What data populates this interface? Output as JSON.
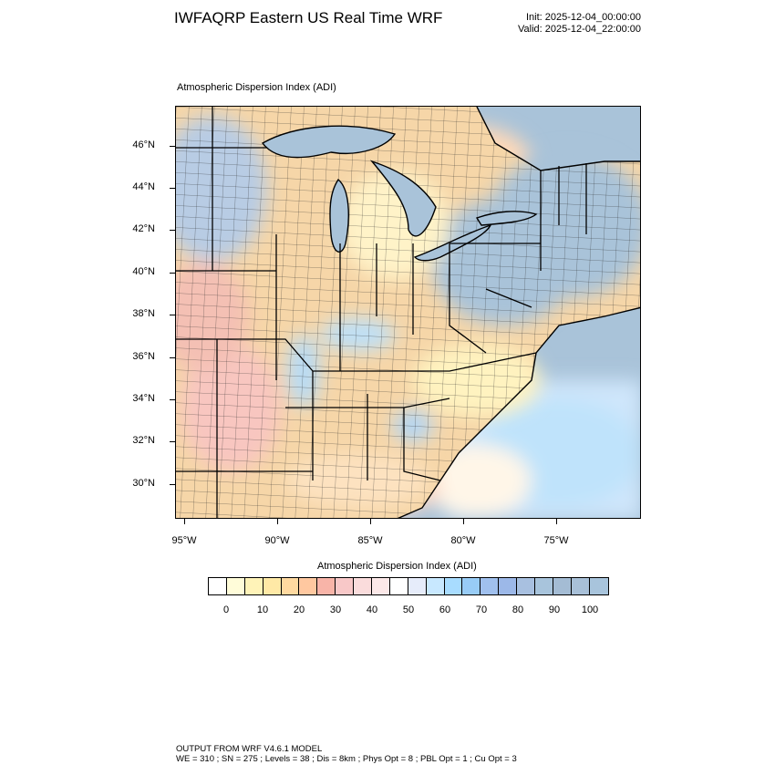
{
  "title": "IWFAQRP Eastern US Real Time WRF",
  "init": "Init: 2025-12-04_00:00:00",
  "valid": "Valid: 2025-12-04_22:00:00",
  "map_title": "Atmospheric Dispersion Index   (ADI)",
  "lat_labels": [
    "46°N",
    "44°N",
    "42°N",
    "40°N",
    "38°N",
    "36°N",
    "34°N",
    "32°N",
    "30°N"
  ],
  "lon_labels": [
    "95°W",
    "90°W",
    "85°W",
    "80°W",
    "75°W"
  ],
  "colorbar": {
    "title": "Atmospheric Dispersion Index  (ADI)",
    "labels": [
      "0",
      "10",
      "20",
      "30",
      "40",
      "50",
      "60",
      "70",
      "80",
      "90",
      "100"
    ],
    "colors": [
      "#ffffff",
      "#fffcd9",
      "#fff3b8",
      "#ffe9a6",
      "#ffd9a0",
      "#ffc8a0",
      "#f8b4a8",
      "#f8c8c8",
      "#fadcdc",
      "#fce8e8",
      "#ffffff",
      "#e6ecfa",
      "#c8e8ff",
      "#a8dcff",
      "#98ccf6",
      "#a0c0ee",
      "#9cb8e8",
      "#a8c0e0",
      "#a8c4dc",
      "#a4bcd4",
      "#a8c0d8",
      "#a8c4dc"
    ]
  },
  "footer": {
    "line1": "OUTPUT FROM WRF V4.6.1 MODEL",
    "line2": "WE = 310 ; SN = 275 ; Levels = 38 ; Dis = 8km ; Phys Opt = 8 ; PBL Opt = 1 ; Cu Opt = 3"
  }
}
